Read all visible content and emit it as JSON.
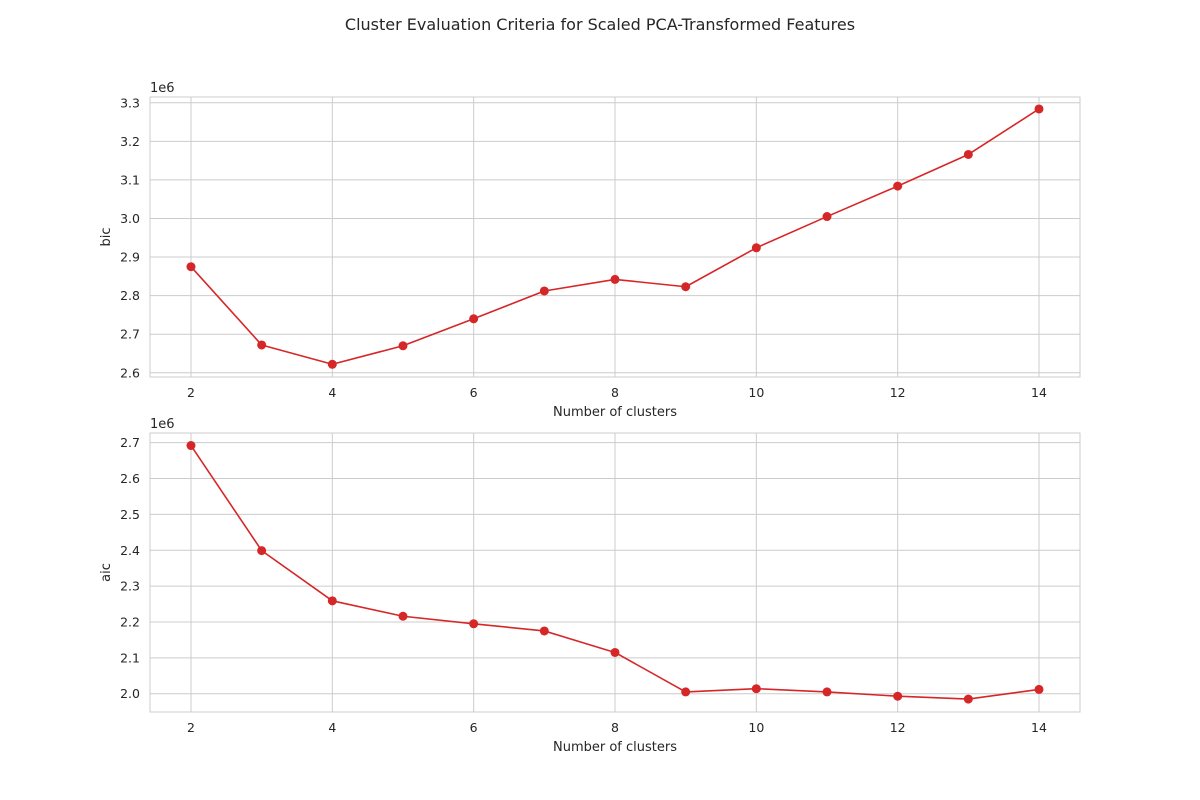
{
  "figure": {
    "title": "Cluster Evaluation Criteria for Scaled PCA-Transformed Features"
  },
  "colors": {
    "line": "#d62728",
    "grid": "#cccccc",
    "text": "#262626",
    "background": "#ffffff"
  },
  "chart_data": [
    {
      "type": "line",
      "title": "",
      "xlabel": "Number of clusters",
      "ylabel": "bic",
      "y_offset_label": "1e6",
      "x": [
        2,
        3,
        4,
        5,
        6,
        7,
        8,
        9,
        10,
        11,
        12,
        13,
        14
      ],
      "series": [
        {
          "values": [
            2.875,
            2.672,
            2.622,
            2.67,
            2.74,
            2.812,
            2.842,
            2.823,
            2.924,
            3.005,
            3.084,
            3.166,
            3.284
          ]
        }
      ],
      "x_ticks": [
        2,
        4,
        6,
        8,
        10,
        12,
        14
      ],
      "x_tick_labels": [
        "2",
        "4",
        "6",
        "8",
        "10",
        "12",
        "14"
      ],
      "y_ticks": [
        2.6,
        2.7,
        2.8,
        2.9,
        3.0,
        3.1,
        3.2,
        3.3
      ],
      "y_tick_labels": [
        "2.6",
        "2.7",
        "2.8",
        "2.9",
        "3.0",
        "3.1",
        "3.2",
        "3.3"
      ],
      "xlim": [
        1.42,
        14.58
      ],
      "ylim": [
        2.589,
        3.315
      ],
      "grid": true,
      "legend": "none",
      "marker": "circle"
    },
    {
      "type": "line",
      "title": "",
      "xlabel": "Number of clusters",
      "ylabel": "aic",
      "y_offset_label": "1e6",
      "x": [
        2,
        3,
        4,
        5,
        6,
        7,
        8,
        9,
        10,
        11,
        12,
        13,
        14
      ],
      "series": [
        {
          "values": [
            2.692,
            2.399,
            2.259,
            2.216,
            2.195,
            2.175,
            2.115,
            2.005,
            2.014,
            2.005,
            1.993,
            1.985,
            2.012
          ]
        }
      ],
      "x_ticks": [
        2,
        4,
        6,
        8,
        10,
        12,
        14
      ],
      "x_tick_labels": [
        "2",
        "4",
        "6",
        "8",
        "10",
        "12",
        "14"
      ],
      "y_ticks": [
        2.0,
        2.1,
        2.2,
        2.3,
        2.4,
        2.5,
        2.6,
        2.7
      ],
      "y_tick_labels": [
        "2.0",
        "2.1",
        "2.2",
        "2.3",
        "2.4",
        "2.5",
        "2.6",
        "2.7"
      ],
      "xlim": [
        1.42,
        14.58
      ],
      "ylim": [
        1.949,
        2.727
      ],
      "grid": true,
      "legend": "none",
      "marker": "circle"
    }
  ]
}
